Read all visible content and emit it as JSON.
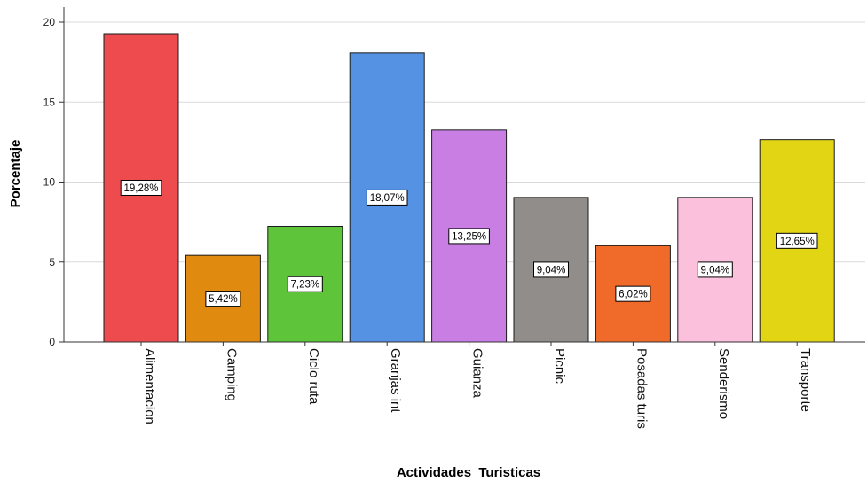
{
  "chart_data": {
    "type": "bar",
    "xlabel": "Actividades_Turisticas",
    "ylabel": "Porcentaje",
    "ylim": [
      0,
      21
    ],
    "yticks": [
      0,
      5,
      10,
      15,
      20
    ],
    "grid": true,
    "categories": [
      "Alimentacion",
      "Camping",
      "Ciclo ruta",
      "Granjas int",
      "Guianza",
      "Picnic",
      "Posadas turis",
      "Senderismo",
      "Transporte"
    ],
    "values": [
      19.28,
      5.42,
      7.23,
      18.07,
      13.25,
      9.04,
      6.02,
      9.04,
      12.65
    ],
    "data_labels": [
      "19,28%",
      "5,42%",
      "7,23%",
      "18,07%",
      "13,25%",
      "9,04%",
      "6,02%",
      "9,04%",
      "12,65%"
    ],
    "colors": [
      "#ee4b4f",
      "#e08a0f",
      "#5ec43a",
      "#5592e4",
      "#c97ee4",
      "#918d8a",
      "#f06a2a",
      "#fbc1dc",
      "#e2d514"
    ]
  }
}
